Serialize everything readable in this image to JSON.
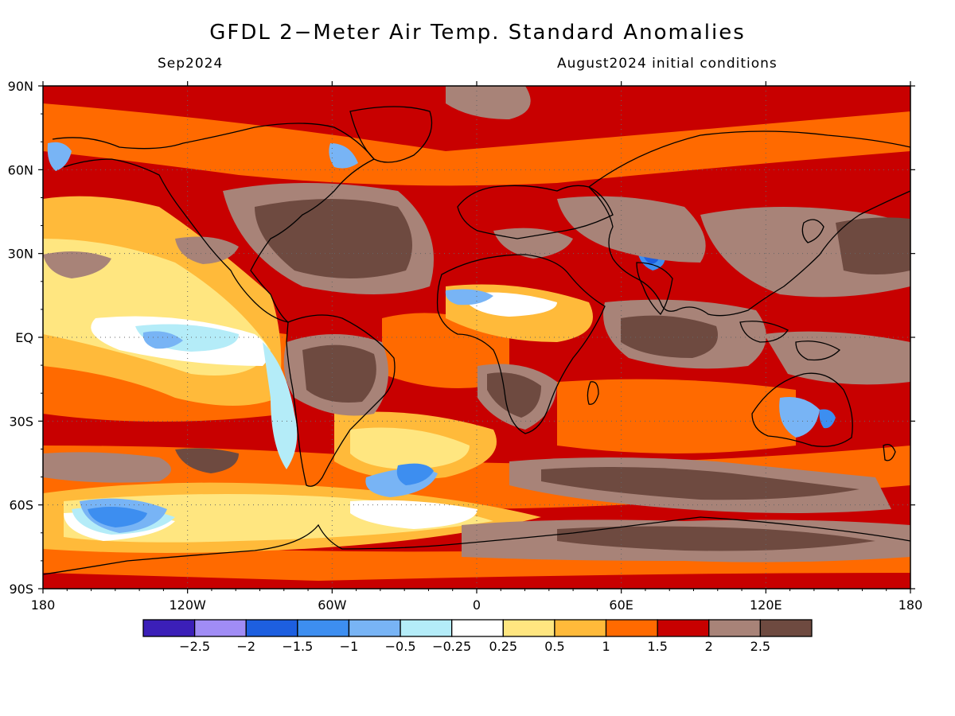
{
  "title": "GFDL 2−Meter Air Temp. Standard Anomalies",
  "subtitle_left": "Sep2024",
  "subtitle_right": "August2024 initial conditions",
  "lat_labels": [
    "90N",
    "60N",
    "30N",
    "EQ",
    "30S",
    "60S",
    "90S"
  ],
  "lat_values": [
    90,
    60,
    30,
    0,
    -30,
    -60,
    -90
  ],
  "lon_labels": [
    "180",
    "120W",
    "60W",
    "0",
    "60E",
    "120E",
    "180"
  ],
  "lon_values": [
    -180,
    -120,
    -60,
    0,
    60,
    120,
    180
  ],
  "colorbar": {
    "colors": [
      "#3b1fb8",
      "#a08cf5",
      "#1d5fe0",
      "#3d8ef0",
      "#78b4f5",
      "#b4ecf8",
      "#ffffff",
      "#ffe680",
      "#ffba3a",
      "#ff6a00",
      "#c80000",
      "#a88378",
      "#6e4a40"
    ],
    "labels": [
      "−2.5",
      "−2",
      "−1.5",
      "−1",
      "−0.5",
      "−0.25",
      "0.25",
      "0.5",
      "1",
      "1.5",
      "2",
      "2.5"
    ]
  },
  "palette": {
    "strong_cold": "#1d5fe0",
    "cold": "#3d8ef0",
    "cool": "#78b4f5",
    "cyan": "#b4ecf8",
    "neutral": "#ffffff",
    "light_warm": "#ffe680",
    "warm": "#ffba3a",
    "orange": "#ff6a00",
    "red": "#c80000",
    "brown_light": "#a88378",
    "brown_dark": "#6e4a40"
  }
}
